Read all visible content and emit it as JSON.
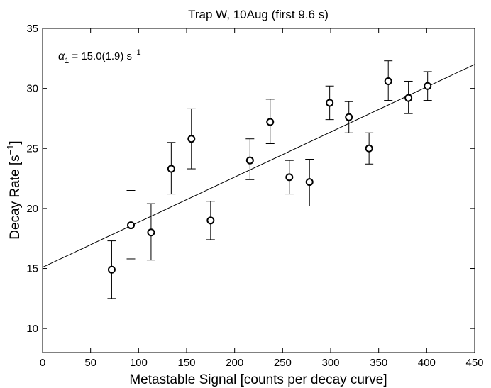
{
  "chart_data": {
    "type": "scatter",
    "title": "Trap W, 10Aug (first 9.6 s)",
    "xlabel": "Metastable Signal [counts per decay curve]",
    "ylabel_main": "Decay Rate [s",
    "ylabel_sup": "−1",
    "ylabel_close": "]",
    "xlim": [
      0,
      450
    ],
    "ylim": [
      8,
      35
    ],
    "xticks": [
      0,
      50,
      100,
      150,
      200,
      250,
      300,
      350,
      400,
      450
    ],
    "yticks": [
      10,
      15,
      20,
      25,
      30,
      35
    ],
    "annotation": {
      "symbol": "α",
      "subscript": "1",
      "text": " = 15.0(1.9) s",
      "sup": "−1"
    },
    "fit_line": {
      "x": [
        0,
        450
      ],
      "y": [
        15.1,
        32.0
      ]
    },
    "series": [
      {
        "name": "data",
        "points": [
          {
            "x": 72,
            "y": 14.9,
            "err_low": 12.5,
            "err_high": 17.3
          },
          {
            "x": 92,
            "y": 18.6,
            "err_low": 15.8,
            "err_high": 21.5
          },
          {
            "x": 113,
            "y": 18.0,
            "err_low": 15.7,
            "err_high": 20.4
          },
          {
            "x": 134,
            "y": 23.3,
            "err_low": 21.2,
            "err_high": 25.5
          },
          {
            "x": 155,
            "y": 25.8,
            "err_low": 23.3,
            "err_high": 28.3
          },
          {
            "x": 175,
            "y": 19.0,
            "err_low": 17.4,
            "err_high": 20.6
          },
          {
            "x": 216,
            "y": 24.0,
            "err_low": 22.4,
            "err_high": 25.8
          },
          {
            "x": 237,
            "y": 27.2,
            "err_low": 25.4,
            "err_high": 29.1
          },
          {
            "x": 257,
            "y": 22.6,
            "err_low": 21.2,
            "err_high": 24.0
          },
          {
            "x": 278,
            "y": 22.2,
            "err_low": 20.2,
            "err_high": 24.1
          },
          {
            "x": 299,
            "y": 28.8,
            "err_low": 27.4,
            "err_high": 30.2
          },
          {
            "x": 319,
            "y": 27.6,
            "err_low": 26.3,
            "err_high": 28.9
          },
          {
            "x": 340,
            "y": 25.0,
            "err_low": 23.7,
            "err_high": 26.3
          },
          {
            "x": 360,
            "y": 30.6,
            "err_low": 29.0,
            "err_high": 32.3
          },
          {
            "x": 381,
            "y": 29.2,
            "err_low": 27.9,
            "err_high": 30.6
          },
          {
            "x": 401,
            "y": 30.2,
            "err_low": 29.0,
            "err_high": 31.4
          }
        ]
      }
    ]
  }
}
